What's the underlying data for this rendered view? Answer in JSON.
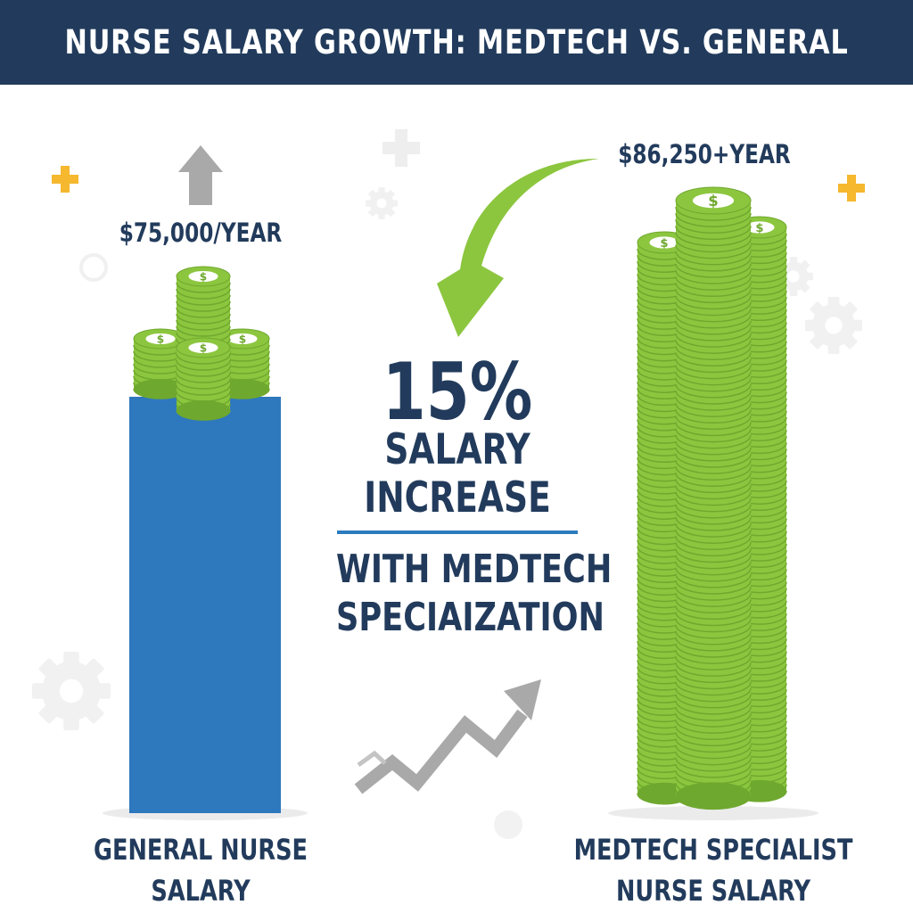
{
  "title": "NURSE SALARY GROWTH: MEDTECH VS. GENERAL",
  "general": {
    "value_label": "$75,000/YEAR",
    "label_line1": "GENERAL NURSE",
    "label_line2": "SALARY"
  },
  "specialist": {
    "value_label": "$86,250+YEAR",
    "label_line1": "MEDTECH SPECIALIST",
    "label_line2": "NURSE SALARY"
  },
  "center": {
    "percent": "15%",
    "line1": "SALARY",
    "line2": "INCREASE",
    "line3": "WITH MEDTECH",
    "line4": "SPECIAIZATION"
  },
  "coin_symbol": "$",
  "colors": {
    "header": "#223b5c",
    "text": "#223b5c",
    "bar_blue": "#2e78bd",
    "coin_green": "#8cc63f",
    "coin_dark": "#6fa82e",
    "accent_plus": "#f5b82e",
    "divider": "#2c7bbf",
    "arrow_gray": "#a9a9a9",
    "arrow_green": "#8cc63f"
  },
  "icons": [
    "plus-icon",
    "gear-icon",
    "up-arrow-icon",
    "curved-arrow-icon",
    "trend-arrow-icon",
    "coin-icon"
  ]
}
